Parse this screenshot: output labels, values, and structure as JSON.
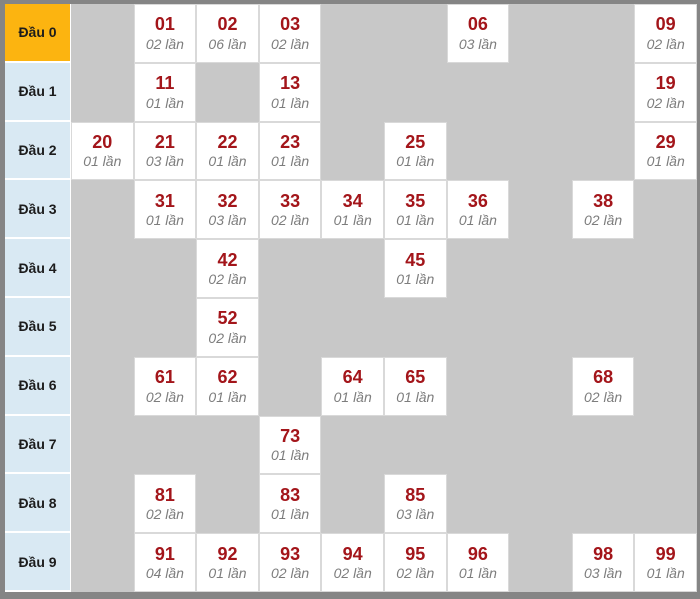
{
  "colors": {
    "header_row_bg": "#FCB410",
    "label_bg": "#D9E9F3",
    "empty_bg": "#C8C8C8",
    "cell_bg": "#FFFFFF",
    "number_color": "#A3151A",
    "freq_color": "#7D7D7D",
    "label_text": "#1C1C1C",
    "border_color": "#858585",
    "cell_border": "#D9D9D9"
  },
  "rows": [
    {
      "label": "Đầu 0",
      "highlight": true,
      "cells": [
        null,
        {
          "num": "01",
          "freq": "02 lần"
        },
        {
          "num": "02",
          "freq": "06 lần"
        },
        {
          "num": "03",
          "freq": "02 lần"
        },
        null,
        null,
        {
          "num": "06",
          "freq": "03 lần"
        },
        null,
        null,
        {
          "num": "09",
          "freq": "02 lần"
        }
      ]
    },
    {
      "label": "Đầu 1",
      "highlight": false,
      "cells": [
        null,
        {
          "num": "11",
          "freq": "01 lần"
        },
        null,
        {
          "num": "13",
          "freq": "01 lần"
        },
        null,
        null,
        null,
        null,
        null,
        {
          "num": "19",
          "freq": "02 lần"
        }
      ]
    },
    {
      "label": "Đầu 2",
      "highlight": false,
      "cells": [
        {
          "num": "20",
          "freq": "01 lần"
        },
        {
          "num": "21",
          "freq": "03 lần"
        },
        {
          "num": "22",
          "freq": "01 lần"
        },
        {
          "num": "23",
          "freq": "01 lần"
        },
        null,
        {
          "num": "25",
          "freq": "01 lần"
        },
        null,
        null,
        null,
        {
          "num": "29",
          "freq": "01 lần"
        }
      ]
    },
    {
      "label": "Đầu 3",
      "highlight": false,
      "cells": [
        null,
        {
          "num": "31",
          "freq": "01 lần"
        },
        {
          "num": "32",
          "freq": "03 lần"
        },
        {
          "num": "33",
          "freq": "02 lần"
        },
        {
          "num": "34",
          "freq": "01 lần"
        },
        {
          "num": "35",
          "freq": "01 lần"
        },
        {
          "num": "36",
          "freq": "01 lần"
        },
        null,
        {
          "num": "38",
          "freq": "02 lần"
        },
        null
      ]
    },
    {
      "label": "Đầu 4",
      "highlight": false,
      "cells": [
        null,
        null,
        {
          "num": "42",
          "freq": "02 lần"
        },
        null,
        null,
        {
          "num": "45",
          "freq": "01 lần"
        },
        null,
        null,
        null,
        null
      ]
    },
    {
      "label": "Đầu 5",
      "highlight": false,
      "cells": [
        null,
        null,
        {
          "num": "52",
          "freq": "02 lần"
        },
        null,
        null,
        null,
        null,
        null,
        null,
        null
      ]
    },
    {
      "label": "Đầu 6",
      "highlight": false,
      "cells": [
        null,
        {
          "num": "61",
          "freq": "02 lần"
        },
        {
          "num": "62",
          "freq": "01 lần"
        },
        null,
        {
          "num": "64",
          "freq": "01 lần"
        },
        {
          "num": "65",
          "freq": "01 lần"
        },
        null,
        null,
        {
          "num": "68",
          "freq": "02 lần"
        },
        null
      ]
    },
    {
      "label": "Đầu 7",
      "highlight": false,
      "cells": [
        null,
        null,
        null,
        {
          "num": "73",
          "freq": "01 lần"
        },
        null,
        null,
        null,
        null,
        null,
        null
      ]
    },
    {
      "label": "Đầu 8",
      "highlight": false,
      "cells": [
        null,
        {
          "num": "81",
          "freq": "02 lần"
        },
        null,
        {
          "num": "83",
          "freq": "01 lần"
        },
        null,
        {
          "num": "85",
          "freq": "03 lần"
        },
        null,
        null,
        null,
        null
      ]
    },
    {
      "label": "Đầu 9",
      "highlight": false,
      "cells": [
        null,
        {
          "num": "91",
          "freq": "04 lần"
        },
        {
          "num": "92",
          "freq": "01 lần"
        },
        {
          "num": "93",
          "freq": "02 lần"
        },
        {
          "num": "94",
          "freq": "02 lần"
        },
        {
          "num": "95",
          "freq": "02 lần"
        },
        {
          "num": "96",
          "freq": "01 lần"
        },
        null,
        {
          "num": "98",
          "freq": "03 lần"
        },
        {
          "num": "99",
          "freq": "01 lần"
        }
      ]
    }
  ],
  "chart_data": {
    "type": "table",
    "row_labels": [
      "Đầu 0",
      "Đầu 1",
      "Đầu 2",
      "Đầu 3",
      "Đầu 4",
      "Đầu 5",
      "Đầu 6",
      "Đầu 7",
      "Đầu 8",
      "Đầu 9"
    ],
    "columns_by_last_digit": [
      0,
      1,
      2,
      3,
      4,
      5,
      6,
      7,
      8,
      9
    ],
    "unit_label": "lần",
    "entries": [
      {
        "number": "01",
        "count": 2
      },
      {
        "number": "02",
        "count": 6
      },
      {
        "number": "03",
        "count": 2
      },
      {
        "number": "06",
        "count": 3
      },
      {
        "number": "09",
        "count": 2
      },
      {
        "number": "11",
        "count": 1
      },
      {
        "number": "13",
        "count": 1
      },
      {
        "number": "19",
        "count": 2
      },
      {
        "number": "20",
        "count": 1
      },
      {
        "number": "21",
        "count": 3
      },
      {
        "number": "22",
        "count": 1
      },
      {
        "number": "23",
        "count": 1
      },
      {
        "number": "25",
        "count": 1
      },
      {
        "number": "29",
        "count": 1
      },
      {
        "number": "31",
        "count": 1
      },
      {
        "number": "32",
        "count": 3
      },
      {
        "number": "33",
        "count": 2
      },
      {
        "number": "34",
        "count": 1
      },
      {
        "number": "35",
        "count": 1
      },
      {
        "number": "36",
        "count": 1
      },
      {
        "number": "38",
        "count": 2
      },
      {
        "number": "42",
        "count": 2
      },
      {
        "number": "45",
        "count": 1
      },
      {
        "number": "52",
        "count": 2
      },
      {
        "number": "61",
        "count": 2
      },
      {
        "number": "62",
        "count": 1
      },
      {
        "number": "64",
        "count": 1
      },
      {
        "number": "65",
        "count": 1
      },
      {
        "number": "68",
        "count": 2
      },
      {
        "number": "73",
        "count": 1
      },
      {
        "number": "81",
        "count": 2
      },
      {
        "number": "83",
        "count": 1
      },
      {
        "number": "85",
        "count": 3
      },
      {
        "number": "91",
        "count": 4
      },
      {
        "number": "92",
        "count": 1
      },
      {
        "number": "93",
        "count": 2
      },
      {
        "number": "94",
        "count": 2
      },
      {
        "number": "95",
        "count": 2
      },
      {
        "number": "96",
        "count": 1
      },
      {
        "number": "98",
        "count": 3
      },
      {
        "number": "99",
        "count": 1
      }
    ]
  }
}
